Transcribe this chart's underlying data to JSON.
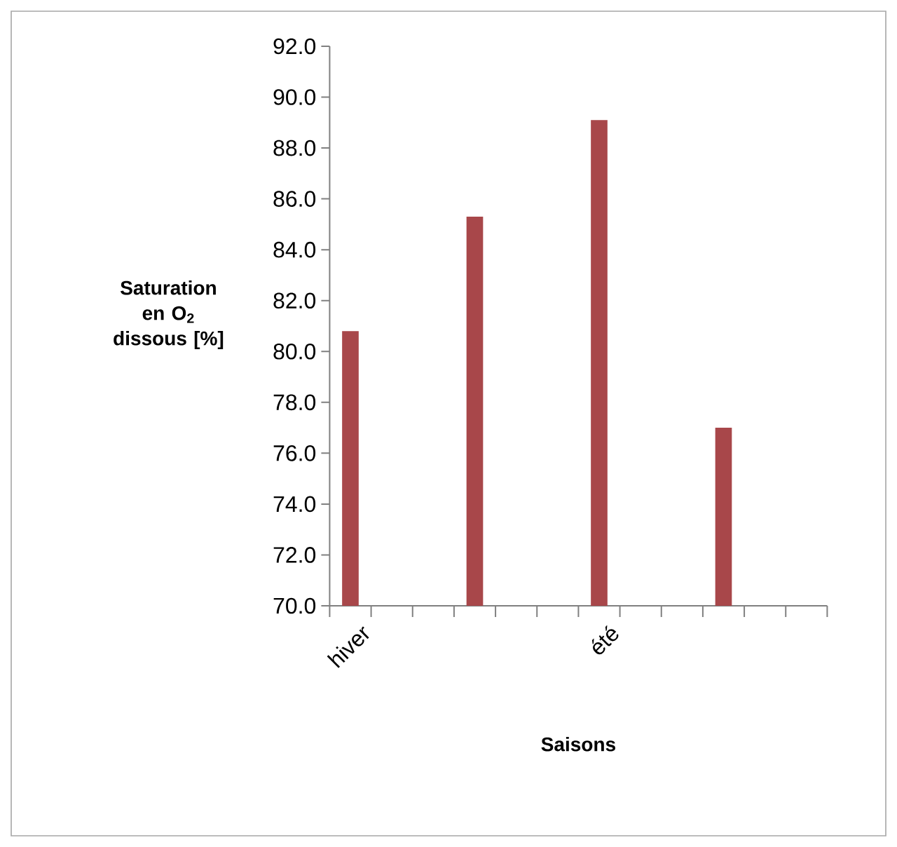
{
  "chart_data": {
    "type": "bar",
    "xlabel": "Saisons",
    "ylabel": "Saturation en O$_{2}$ dissous [%]",
    "categories": [
      "hiver",
      null,
      null,
      null,
      null,
      null,
      "été",
      null,
      null,
      null,
      null,
      null
    ],
    "values": [
      80.8,
      null,
      null,
      85.3,
      null,
      null,
      89.1,
      null,
      null,
      77.0,
      null,
      null
    ],
    "color": "#a8474a",
    "ylim": [
      70,
      92
    ],
    "yticks": [
      {
        "value": 70,
        "label": "70.0"
      },
      {
        "value": 72,
        "label": "72.0"
      },
      {
        "value": 74,
        "label": "74.0"
      },
      {
        "value": 76,
        "label": "76.0"
      },
      {
        "value": 78,
        "label": "78.0"
      },
      {
        "value": 80,
        "label": "80.0"
      },
      {
        "value": 82,
        "label": "82.0"
      },
      {
        "value": 84,
        "label": "84.0"
      },
      {
        "value": 86,
        "label": "86.0"
      },
      {
        "value": 88,
        "label": "88.0"
      },
      {
        "value": 90,
        "label": "90.0"
      },
      {
        "value": 92,
        "label": "92.0"
      }
    ]
  }
}
